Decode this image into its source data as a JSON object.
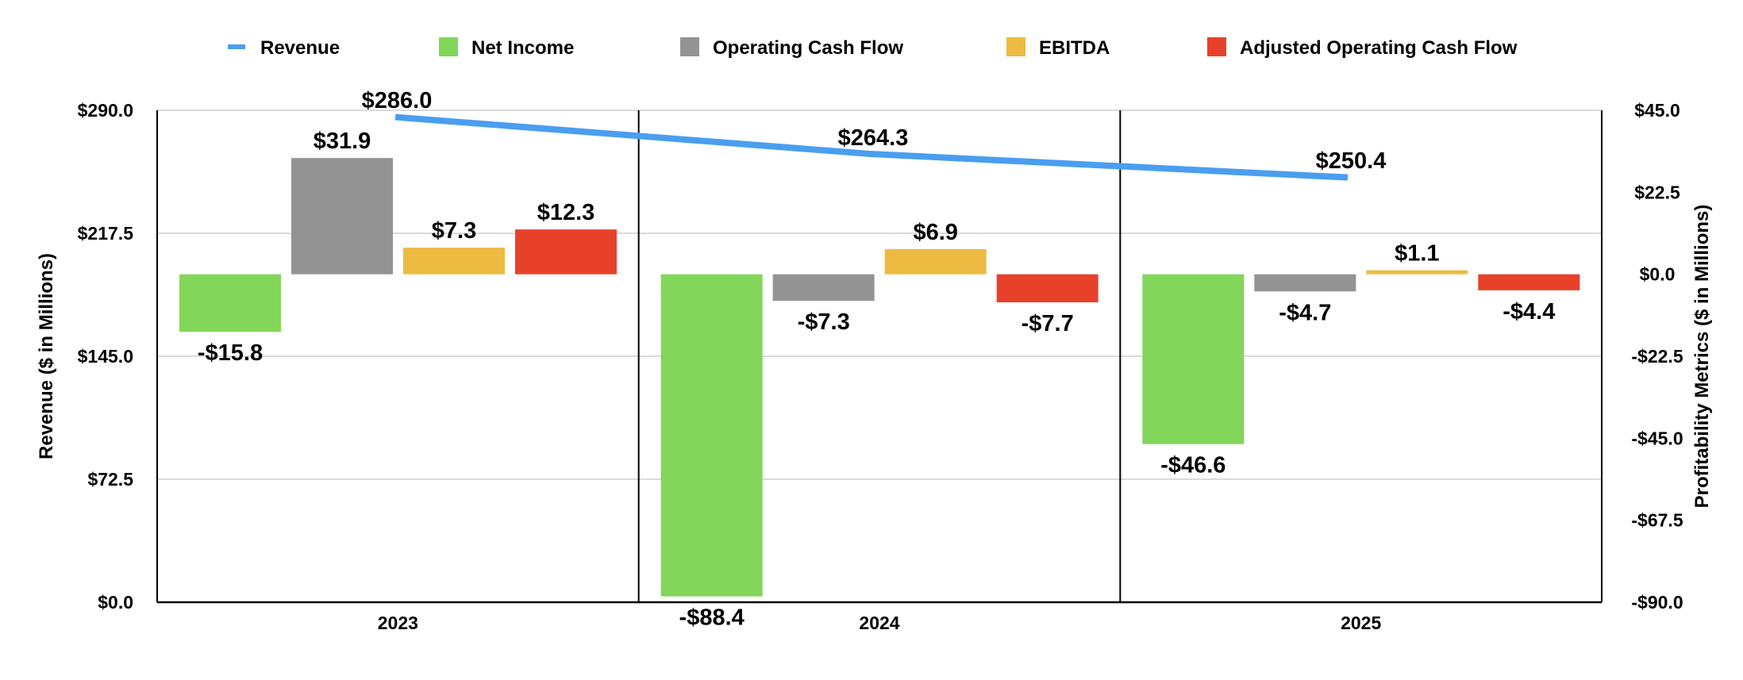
{
  "chart_data": {
    "type": "bar",
    "categories": [
      "2023",
      "2024",
      "2025"
    ],
    "line_series": {
      "name": "Revenue",
      "color": "#4A9EEF",
      "values": [
        286.0,
        264.3,
        250.4
      ],
      "labels": [
        "$286.0",
        "$264.3",
        "$250.4"
      ],
      "axis": "left"
    },
    "series": [
      {
        "name": "Net Income",
        "color": "#82D65A",
        "values": [
          -15.8,
          -88.4,
          -46.6
        ],
        "labels": [
          "-$15.8",
          "-$88.4",
          "-$46.6"
        ]
      },
      {
        "name": "Operating Cash Flow",
        "color": "#939393",
        "values": [
          31.9,
          -7.3,
          -4.7
        ],
        "labels": [
          "$31.9",
          "-$7.3",
          "-$4.7"
        ]
      },
      {
        "name": "EBITDA",
        "color": "#EDBB41",
        "values": [
          7.3,
          6.9,
          1.1
        ],
        "labels": [
          "$7.3",
          "$6.9",
          "$1.1"
        ]
      },
      {
        "name": "Adjusted Operating Cash Flow",
        "color": "#E8412A",
        "values": [
          12.3,
          -7.7,
          -4.4
        ],
        "labels": [
          "$12.3",
          "-$7.7",
          "-$4.4"
        ]
      }
    ],
    "y_left": {
      "label": "Revenue ($ in Millions)",
      "range": [
        0,
        290
      ],
      "ticks": [
        0,
        72.5,
        145,
        217.5,
        290
      ],
      "tick_labels": [
        "$0.0",
        "$72.5",
        "$145.0",
        "$217.5",
        "$290.0"
      ]
    },
    "y_right": {
      "label": "Profitability Metrics ($ in Millions)",
      "range": [
        -90,
        45
      ],
      "ticks": [
        -90,
        -67.5,
        -45,
        -22.5,
        0,
        22.5,
        45
      ],
      "tick_labels": [
        "-$90.0",
        "-$67.5",
        "-$45.0",
        "-$22.5",
        "$0.0",
        "$22.5",
        "$45.0"
      ]
    },
    "legend_position": "top",
    "grid": true
  }
}
